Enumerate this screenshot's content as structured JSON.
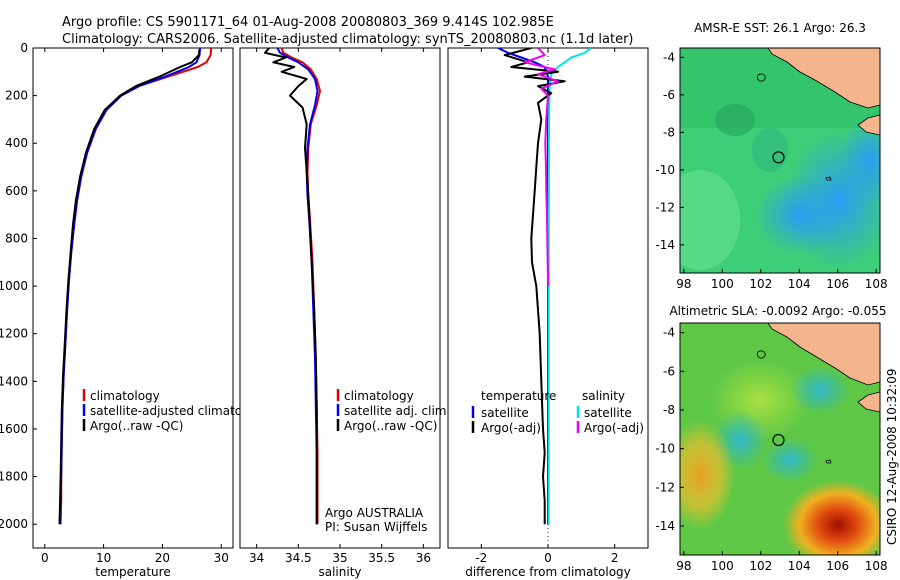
{
  "title_line1": "Argo profile: CS 5901171_64 01-Aug-2008 20080803_369 9.414S 102.985E",
  "title_line2": "Climatology: CARS2006. Satellite-adjusted climatology: synTS_20080803.nc (1.1d later)",
  "side_label": "CSIRO 12-Aug-2008 10:32:09",
  "colors": {
    "clim": "#e00000",
    "sat": "#0000ee",
    "argo": "#000000",
    "sat_sal": "#00e6e6",
    "argo_sal": "#ee00ee",
    "land": "#f4b48c"
  },
  "chart_data": [
    {
      "type": "line",
      "xlabel": "temperature",
      "ylabel": "",
      "xlim": [
        -2,
        32
      ],
      "ylim": [
        2100,
        0
      ],
      "xticks": [
        0,
        10,
        20,
        30
      ],
      "yticks": [
        0,
        200,
        400,
        600,
        800,
        1000,
        1200,
        1400,
        1600,
        1800,
        2000
      ],
      "legend": [
        "climatology",
        "satellite-adjusted climatology",
        "Argo(..raw -QC)"
      ],
      "series": [
        {
          "name": "climatology",
          "color": "#e00000",
          "x": [
            28.3,
            28.2,
            27.5,
            26,
            21,
            16,
            13,
            10.5,
            8.7,
            7.2,
            6.2,
            5.5,
            5,
            4.5,
            4.1,
            3.8,
            3.5,
            3.2,
            3,
            2.9,
            2.8,
            2.8,
            2.7
          ],
          "y": [
            0,
            30,
            60,
            80,
            120,
            160,
            200,
            260,
            340,
            440,
            540,
            640,
            740,
            860,
            980,
            1100,
            1240,
            1380,
            1520,
            1660,
            1800,
            1900,
            2000
          ]
        },
        {
          "name": "satellite-adjusted climatology",
          "color": "#0000ee",
          "x": [
            26.4,
            26.3,
            25.8,
            24.5,
            20.5,
            16,
            13,
            10.5,
            8.6,
            7.2,
            6.2,
            5.5,
            5,
            4.5,
            4.1,
            3.8,
            3.5,
            3.2,
            3,
            2.9,
            2.8,
            2.7,
            2.6
          ],
          "y": [
            0,
            30,
            60,
            80,
            120,
            160,
            200,
            260,
            340,
            440,
            540,
            640,
            740,
            860,
            980,
            1100,
            1240,
            1380,
            1520,
            1660,
            1800,
            1900,
            2000
          ]
        },
        {
          "name": "Argo(..raw -QC)",
          "color": "#000000",
          "x": [
            26.3,
            26.2,
            25,
            23,
            19.5,
            15.5,
            12.8,
            10.2,
            8.4,
            7,
            6,
            5.3,
            4.8,
            4.4,
            4,
            3.7,
            3.4,
            3.1,
            2.9,
            2.8,
            2.7,
            2.6,
            2.5
          ],
          "y": [
            5,
            30,
            60,
            80,
            120,
            160,
            200,
            260,
            340,
            440,
            540,
            640,
            740,
            860,
            980,
            1100,
            1240,
            1380,
            1520,
            1660,
            1800,
            1900,
            2000
          ]
        }
      ]
    },
    {
      "type": "line",
      "xlabel": "salinity",
      "xlim": [
        33.8,
        36.2
      ],
      "ylim": [
        2100,
        0
      ],
      "xticks": [
        34,
        34.5,
        35,
        35.5,
        36
      ],
      "yticks": [],
      "legend": [
        "climatology",
        "satellite adj. clim.",
        "Argo(..raw -QC)"
      ],
      "annotation": [
        "Argo AUSTRALIA",
        "PI: Susan Wijffels"
      ],
      "series": [
        {
          "name": "climatology",
          "color": "#e00000",
          "x": [
            34.3,
            34.32,
            34.42,
            34.55,
            34.65,
            34.72,
            34.76,
            34.72,
            34.65,
            34.62,
            34.61,
            34.62,
            34.64,
            34.67,
            34.69,
            34.71,
            34.72,
            34.73,
            34.73,
            34.73
          ],
          "y": [
            0,
            20,
            40,
            60,
            90,
            130,
            180,
            240,
            320,
            420,
            520,
            620,
            720,
            900,
            1100,
            1300,
            1500,
            1700,
            1900,
            2000
          ]
        },
        {
          "name": "satellite adj. clim.",
          "color": "#0000ee",
          "x": [
            34.25,
            34.28,
            34.38,
            34.5,
            34.62,
            34.7,
            34.73,
            34.7,
            34.64,
            34.61,
            34.6,
            34.61,
            34.63,
            34.66,
            34.68,
            34.7,
            34.71,
            34.72,
            34.72,
            34.72
          ],
          "y": [
            0,
            20,
            40,
            60,
            90,
            130,
            180,
            240,
            320,
            420,
            520,
            620,
            720,
            900,
            1100,
            1300,
            1500,
            1700,
            1900,
            2000
          ]
        },
        {
          "name": "Argo(..raw -QC)",
          "color": "#000000",
          "x": [
            34.15,
            34.1,
            34.35,
            34.2,
            34.45,
            34.3,
            34.6,
            34.5,
            34.4,
            34.55,
            34.6,
            34.58,
            34.6,
            34.62,
            34.64,
            34.66,
            34.69,
            34.71,
            34.72,
            34.72,
            34.72
          ],
          "y": [
            0,
            20,
            40,
            60,
            80,
            100,
            130,
            160,
            200,
            250,
            320,
            420,
            520,
            620,
            760,
            900,
            1100,
            1300,
            1500,
            1700,
            2000
          ]
        }
      ]
    },
    {
      "type": "line",
      "xlabel": "difference from climatology",
      "xlim": [
        -3,
        3
      ],
      "ylim": [
        2100,
        0
      ],
      "xticks": [
        -2,
        0,
        2
      ],
      "yticks": [],
      "legend": [
        "temperature",
        "salinity",
        "satellite",
        "satellite",
        "Argo(-adj)",
        "Argo(-adj)"
      ],
      "series": [
        {
          "name": "temperature satellite",
          "color": "#0000ee",
          "x": [
            -1.5,
            -1.2,
            -0.8,
            -0.4,
            -0.1,
            0,
            0,
            0,
            0,
            0
          ],
          "y": [
            0,
            20,
            40,
            60,
            80,
            120,
            200,
            400,
            1000,
            2000
          ]
        },
        {
          "name": "salinity satellite",
          "color": "#00e6e6",
          "x": [
            1.3,
            1.1,
            0.7,
            0.5,
            0.3,
            0.1,
            0.05,
            0.03,
            0.02,
            0.02
          ],
          "y": [
            0,
            20,
            40,
            60,
            80,
            110,
            150,
            300,
            1000,
            2000
          ]
        },
        {
          "name": "temperature Argo(-adj)",
          "color": "#000000",
          "x": [
            -0.5,
            -1.3,
            -0.6,
            -1.1,
            0.3,
            -0.7,
            0.5,
            -0.3,
            0.1,
            -0.3,
            -0.2,
            -0.3,
            -0.35,
            -0.4,
            -0.45,
            -0.5,
            -0.48,
            -0.35,
            -0.25,
            -0.2,
            -0.15,
            -0.1,
            -0.15,
            -0.1,
            -0.1
          ],
          "y": [
            0,
            30,
            60,
            80,
            100,
            120,
            140,
            160,
            190,
            230,
            300,
            400,
            500,
            600,
            700,
            800,
            900,
            1000,
            1200,
            1400,
            1600,
            1700,
            1800,
            1900,
            2000
          ]
        },
        {
          "name": "salinity Argo(-adj)",
          "color": "#ee00ee",
          "x": [
            -0.3,
            -0.1,
            -0.7,
            0.2,
            -0.3,
            0.3,
            -0.2,
            0,
            -0.05,
            -0.08,
            -0.06,
            -0.05,
            -0.03,
            -0.02,
            -0.01,
            0
          ],
          "y": [
            0,
            30,
            60,
            90,
            110,
            140,
            170,
            200,
            300,
            400,
            500,
            600,
            700,
            800,
            900,
            1000
          ]
        }
      ]
    },
    {
      "type": "heatmap",
      "title": "AMSR-E SST: 26.1  Argo: 26.3",
      "xlim": [
        97.8,
        108.2
      ],
      "ylim": [
        -15.5,
        -3.5
      ],
      "xticks": [
        98,
        100,
        102,
        104,
        106,
        108
      ],
      "yticks": [
        -4,
        -6,
        -8,
        -10,
        -12,
        -14
      ],
      "marker": {
        "lon": 102.985,
        "lat": -9.414
      }
    },
    {
      "type": "heatmap",
      "title": "Altimetric SLA: -0.0092  Argo: -0.055",
      "xlim": [
        97.8,
        108.2
      ],
      "ylim": [
        -15.5,
        -3.5
      ],
      "xticks": [
        98,
        100,
        102,
        104,
        106,
        108
      ],
      "yticks": [
        -4,
        -6,
        -8,
        -10,
        -12,
        -14
      ],
      "marker": {
        "lon": 102.985,
        "lat": -9.414
      }
    }
  ]
}
